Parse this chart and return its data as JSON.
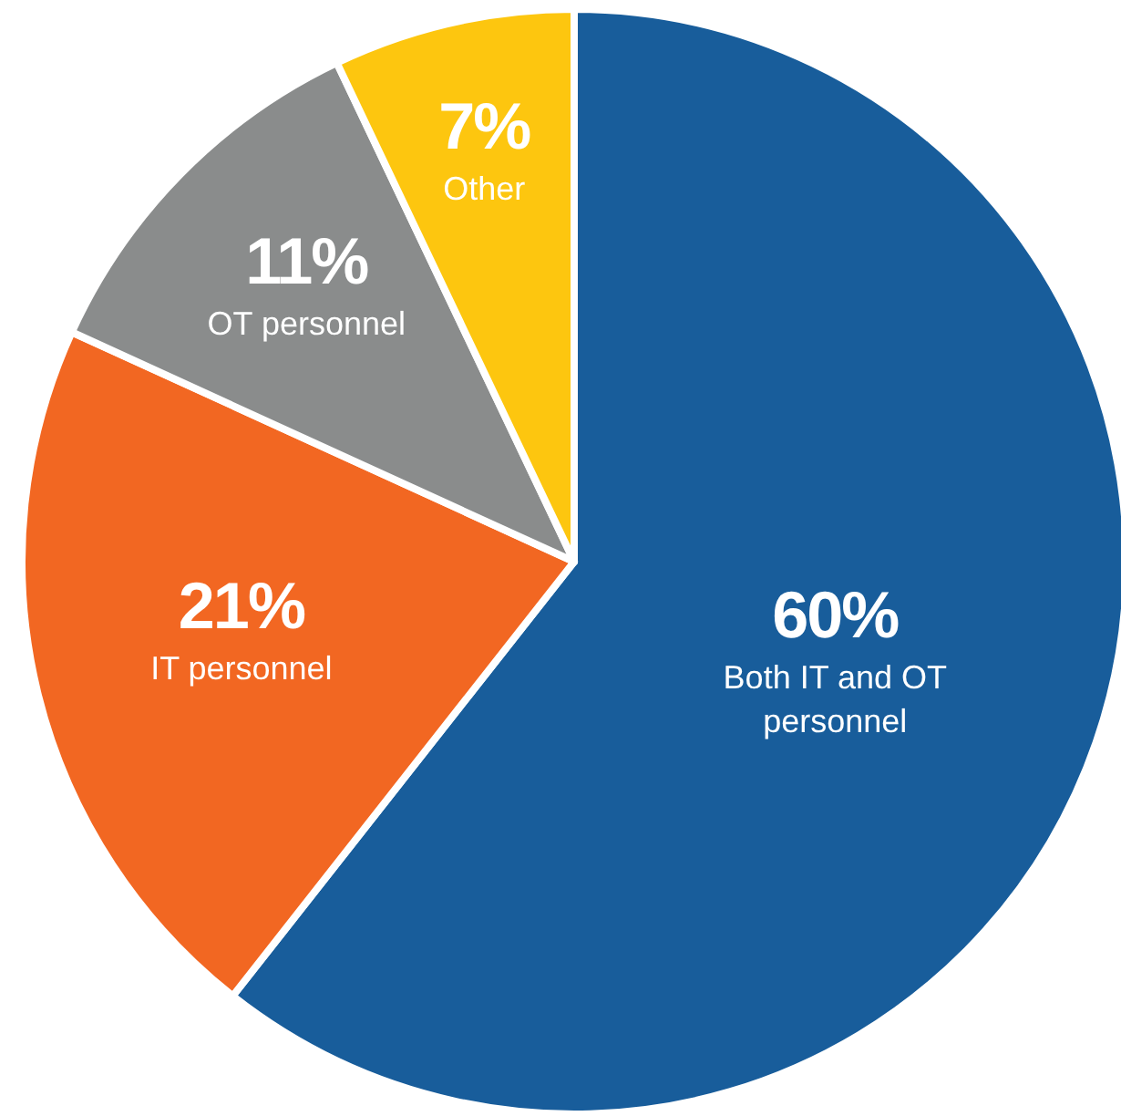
{
  "chart_data": {
    "type": "pie",
    "categories": [
      "Both IT and OT personnel",
      "IT personnel",
      "OT personnel",
      "Other"
    ],
    "values": [
      60,
      21,
      11,
      7
    ],
    "colors": [
      "#185d9b",
      "#f26722",
      "#8a8c8c",
      "#fdc60f"
    ],
    "value_labels": [
      "60%",
      "21%",
      "11%",
      "7%"
    ]
  }
}
